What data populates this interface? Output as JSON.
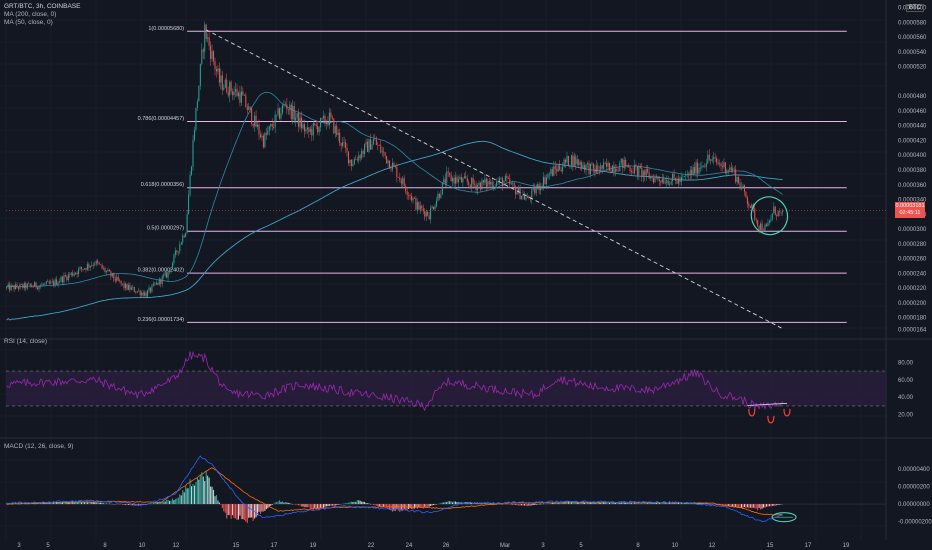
{
  "header": {
    "symbol": "GRT/BTC, 3h, COINBASE",
    "ma200": "MA (200, close, 0)",
    "ma50": "MA (50, close, 0)",
    "currency": "BTC"
  },
  "rsi_panel": {
    "label": "RSI (14, close)",
    "ticks": [
      "80.00",
      "60.00",
      "40.00",
      "20.00"
    ]
  },
  "macd_panel": {
    "label": "MACD (12, 26, close, 9)",
    "ticks": [
      "0.00000400",
      "0.00000200",
      "0.00000000",
      "-0.00000200"
    ]
  },
  "price_badge": {
    "price": "0.00003181",
    "countdown": "02:45:11"
  },
  "colors": {
    "background": "#131722",
    "up": "#26a69a",
    "down": "#ef5350",
    "ma200": "#3ca3c7",
    "ma50": "#2f8aa8",
    "fib": "#e5b5e8",
    "rsi": "#9c27b0",
    "rsi_band": "#2a1f3d",
    "macd_line": "#2962ff",
    "signal_line": "#ff6d00",
    "annotation_circle": "#4fd1b6",
    "annotation_red": "#ff3b30"
  },
  "chart_data": {
    "type": "candlestick",
    "y_scale": "linear",
    "ylim": [
      1.55e-05,
      6.05e-05
    ],
    "price_axis_ticks": [
      "0.0000600",
      "0.0000580",
      "0.0000560",
      "0.0000540",
      "0.0000520",
      "0.0000480",
      "0.0000460",
      "0.0000440",
      "0.0000420",
      "0.0000400",
      "0.0000380",
      "0.0000360",
      "0.0000340",
      "0.0000320",
      "0.0000300",
      "0.0000280",
      "0.0000260",
      "0.0000240",
      "0.0000220",
      "0.0000200",
      "0.0000180",
      "0.0000164"
    ],
    "x_ticks": [
      "3",
      "5",
      "8",
      "10",
      "12",
      "15",
      "17",
      "19",
      "22",
      "24",
      "26",
      "Mar",
      "3",
      "5",
      "8",
      "10",
      "12",
      "15",
      "17",
      "19"
    ],
    "fib_levels": [
      {
        "label": "1(0.00005680)",
        "value": 5.68e-05
      },
      {
        "label": "0.786(0.00004457)",
        "value": 4.457e-05
      },
      {
        "label": "0.618(0.0000356)",
        "value": 3.56e-05
      },
      {
        "label": "0.5(0.0000297)",
        "value": 2.97e-05
      },
      {
        "label": "0.382(0.00002402)",
        "value": 2.402e-05
      },
      {
        "label": "0.236(0.00001734)",
        "value": 1.734e-05
      }
    ],
    "key_prices": [
      {
        "t": 0,
        "p": 2.2e-05
      },
      {
        "t": 30,
        "p": 2.25e-05
      },
      {
        "t": 60,
        "p": 2.55e-05
      },
      {
        "t": 80,
        "p": 2.22e-05
      },
      {
        "t": 95,
        "p": 2.12e-05
      },
      {
        "t": 110,
        "p": 2.4e-05
      },
      {
        "t": 122,
        "p": 3e-05
      },
      {
        "t": 128,
        "p": 4.4e-05
      },
      {
        "t": 135,
        "p": 5.7e-05
      },
      {
        "t": 145,
        "p": 5e-05
      },
      {
        "t": 160,
        "p": 4.8e-05
      },
      {
        "t": 175,
        "p": 4.2e-05
      },
      {
        "t": 190,
        "p": 4.7e-05
      },
      {
        "t": 205,
        "p": 4.3e-05
      },
      {
        "t": 220,
        "p": 4.5e-05
      },
      {
        "t": 235,
        "p": 3.9e-05
      },
      {
        "t": 250,
        "p": 4.2e-05
      },
      {
        "t": 265,
        "p": 3.8e-05
      },
      {
        "t": 280,
        "p": 3.3e-05
      },
      {
        "t": 288,
        "p": 3.2e-05
      },
      {
        "t": 300,
        "p": 3.7e-05
      },
      {
        "t": 320,
        "p": 3.6e-05
      },
      {
        "t": 340,
        "p": 3.65e-05
      },
      {
        "t": 355,
        "p": 3.4e-05
      },
      {
        "t": 370,
        "p": 3.75e-05
      },
      {
        "t": 385,
        "p": 3.95e-05
      },
      {
        "t": 400,
        "p": 3.8e-05
      },
      {
        "t": 420,
        "p": 3.88e-05
      },
      {
        "t": 440,
        "p": 3.7e-05
      },
      {
        "t": 460,
        "p": 3.65e-05
      },
      {
        "t": 478,
        "p": 3.95e-05
      },
      {
        "t": 495,
        "p": 3.8e-05
      },
      {
        "t": 505,
        "p": 3.4e-05
      },
      {
        "t": 513,
        "p": 3.05e-05
      },
      {
        "t": 518,
        "p": 3e-05
      },
      {
        "t": 523,
        "p": 3.25e-05
      },
      {
        "t": 529,
        "p": 3.18e-05
      }
    ],
    "trendline": {
      "from": {
        "t": 136,
        "p": 5.7e-05
      },
      "to": {
        "t": 529,
        "p": 1.65e-05
      }
    },
    "rsi": {
      "ylim": [
        0,
        100
      ],
      "band": [
        30,
        70
      ],
      "key_values": [
        {
          "t": 0,
          "v": 55
        },
        {
          "t": 60,
          "v": 60
        },
        {
          "t": 90,
          "v": 42
        },
        {
          "t": 115,
          "v": 62
        },
        {
          "t": 125,
          "v": 88
        },
        {
          "t": 135,
          "v": 85
        },
        {
          "t": 150,
          "v": 45
        },
        {
          "t": 175,
          "v": 42
        },
        {
          "t": 200,
          "v": 55
        },
        {
          "t": 240,
          "v": 44
        },
        {
          "t": 265,
          "v": 38
        },
        {
          "t": 285,
          "v": 30
        },
        {
          "t": 300,
          "v": 58
        },
        {
          "t": 330,
          "v": 50
        },
        {
          "t": 360,
          "v": 42
        },
        {
          "t": 375,
          "v": 62
        },
        {
          "t": 400,
          "v": 52
        },
        {
          "t": 440,
          "v": 48
        },
        {
          "t": 470,
          "v": 68
        },
        {
          "t": 485,
          "v": 45
        },
        {
          "t": 500,
          "v": 38
        },
        {
          "t": 512,
          "v": 28
        },
        {
          "t": 520,
          "v": 30
        },
        {
          "t": 529,
          "v": 33
        }
      ]
    },
    "macd": {
      "ylim": [
        -3.2e-06,
        6.2e-06
      ],
      "key_hist": [
        {
          "t": 0,
          "v": 1e-07
        },
        {
          "t": 50,
          "v": 3e-07
        },
        {
          "t": 90,
          "v": -2e-07
        },
        {
          "t": 115,
          "v": 6e-07
        },
        {
          "t": 128,
          "v": 2.8e-06
        },
        {
          "t": 135,
          "v": 3.5e-06
        },
        {
          "t": 150,
          "v": -1.4e-06
        },
        {
          "t": 165,
          "v": -2e-06
        },
        {
          "t": 185,
          "v": 4e-07
        },
        {
          "t": 210,
          "v": -6e-07
        },
        {
          "t": 240,
          "v": 4e-07
        },
        {
          "t": 265,
          "v": -8e-07
        },
        {
          "t": 285,
          "v": -4e-07
        },
        {
          "t": 300,
          "v": 3e-07
        },
        {
          "t": 330,
          "v": 1e-07
        },
        {
          "t": 355,
          "v": -2e-07
        },
        {
          "t": 380,
          "v": 3e-07
        },
        {
          "t": 430,
          "v": 1e-07
        },
        {
          "t": 470,
          "v": 2e-07
        },
        {
          "t": 495,
          "v": -3e-07
        },
        {
          "t": 512,
          "v": -6e-07
        },
        {
          "t": 529,
          "v": 0.0
        }
      ],
      "key_macd": [
        {
          "t": 0,
          "v": 1e-07
        },
        {
          "t": 60,
          "v": 4e-07
        },
        {
          "t": 95,
          "v": -1e-07
        },
        {
          "t": 115,
          "v": 1.2e-06
        },
        {
          "t": 132,
          "v": 5.5e-06
        },
        {
          "t": 140,
          "v": 4.5e-06
        },
        {
          "t": 160,
          "v": 2e-07
        },
        {
          "t": 175,
          "v": -1.6e-06
        },
        {
          "t": 195,
          "v": -1e-06
        },
        {
          "t": 230,
          "v": -2e-07
        },
        {
          "t": 265,
          "v": -6e-07
        },
        {
          "t": 290,
          "v": -1e-06
        },
        {
          "t": 310,
          "v": 1e-07
        },
        {
          "t": 380,
          "v": 3e-07
        },
        {
          "t": 460,
          "v": 2e-07
        },
        {
          "t": 490,
          "v": -3e-07
        },
        {
          "t": 505,
          "v": -1.4e-06
        },
        {
          "t": 515,
          "v": -2e-06
        },
        {
          "t": 529,
          "v": -1.2e-06
        }
      ],
      "key_signal": [
        {
          "t": 0,
          "v": 0.0
        },
        {
          "t": 70,
          "v": 3e-07
        },
        {
          "t": 105,
          "v": 2e-07
        },
        {
          "t": 125,
          "v": 2.5e-06
        },
        {
          "t": 140,
          "v": 4.2e-06
        },
        {
          "t": 165,
          "v": 1e-06
        },
        {
          "t": 185,
          "v": -8e-07
        },
        {
          "t": 220,
          "v": -4e-07
        },
        {
          "t": 270,
          "v": -3e-07
        },
        {
          "t": 300,
          "v": -5e-07
        },
        {
          "t": 340,
          "v": 1e-07
        },
        {
          "t": 420,
          "v": 2e-07
        },
        {
          "t": 480,
          "v": 1e-07
        },
        {
          "t": 500,
          "v": -4e-07
        },
        {
          "t": 515,
          "v": -1.2e-06
        },
        {
          "t": 529,
          "v": -1.2e-06
        }
      ]
    }
  }
}
